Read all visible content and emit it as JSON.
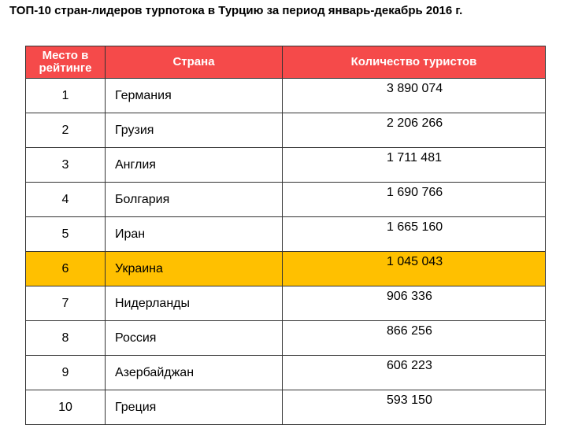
{
  "title": "ТОП-10 стран-лидеров турпотока в Турцию за период январь-декабрь 2016 г.",
  "header": {
    "rank": "Место в рейтинге",
    "country": "Страна",
    "count": "Количество туристов"
  },
  "highlight_color": "#ffc000",
  "header_color": "#f54a4a",
  "rows": [
    {
      "rank": "1",
      "country": "Германия",
      "count": "3 890 074"
    },
    {
      "rank": "2",
      "country": "Грузия",
      "count": "2 206 266"
    },
    {
      "rank": "3",
      "country": "Англия",
      "count": "1 711 481"
    },
    {
      "rank": "4",
      "country": "Болгария",
      "count": "1 690 766"
    },
    {
      "rank": "5",
      "country": "Иран",
      "count": "1 665 160"
    },
    {
      "rank": "6",
      "country": "Украина",
      "count": "1 045 043",
      "highlighted": true
    },
    {
      "rank": "7",
      "country": "Нидерланды",
      "count": "906 336"
    },
    {
      "rank": "8",
      "country": "Россия",
      "count": "866 256"
    },
    {
      "rank": "9",
      "country": "Азербайджан",
      "count": "606 223"
    },
    {
      "rank": "10",
      "country": "Греция",
      "count": "593 150"
    }
  ]
}
